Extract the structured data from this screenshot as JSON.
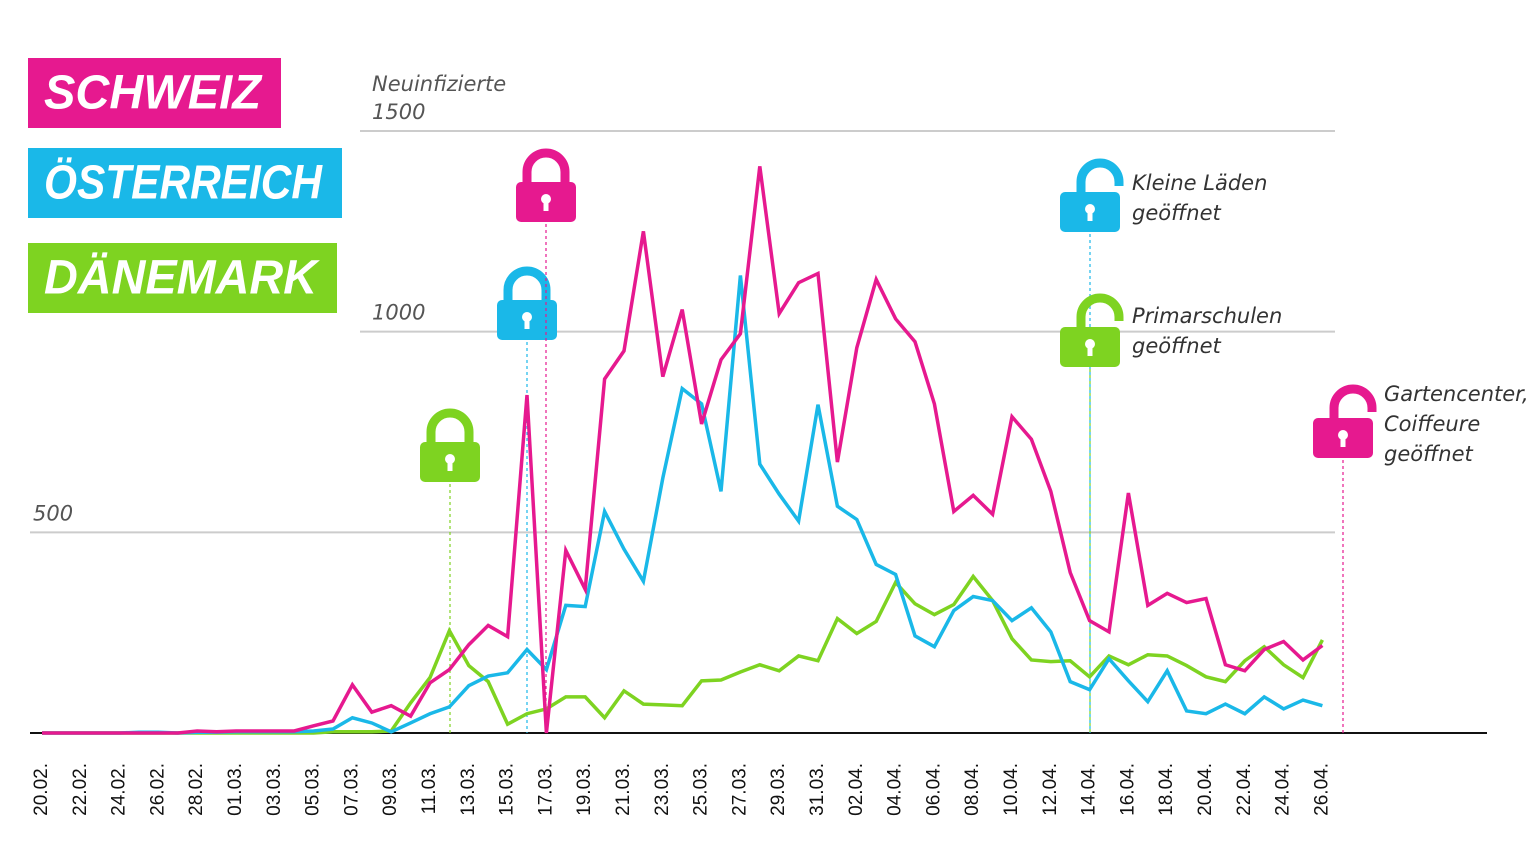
{
  "chart_data": {
    "type": "line",
    "y_label": "Neuinfizierte",
    "categories": [
      "20.02.",
      null,
      "22.02.",
      null,
      "24.02.",
      null,
      "26.02.",
      null,
      "28.02.",
      null,
      "01.03.",
      null,
      "03.03.",
      null,
      "05.03.",
      null,
      "07.03.",
      null,
      "09.03.",
      null,
      "11.03.",
      null,
      "13.03.",
      null,
      "15.03.",
      null,
      "17.03.",
      null,
      "19.03.",
      null,
      "21.03.",
      null,
      "23.03.",
      null,
      "25.03.",
      null,
      "27.03.",
      null,
      "29.03.",
      null,
      "31.03.",
      null,
      "02.04.",
      null,
      "04.04.",
      null,
      "06.04.",
      null,
      "08.04.",
      null,
      "10.04.",
      null,
      "12.04.",
      null,
      "14.04.",
      null,
      "16.04.",
      null,
      "18.04.",
      null,
      "20.04.",
      null,
      "22.04.",
      null,
      "24.04.",
      null,
      "26.04."
    ],
    "series": [
      {
        "name": "SCHWEIZ",
        "color": "#e6198f",
        "values": [
          0,
          0,
          0,
          0,
          0,
          0,
          0,
          0,
          5,
          3,
          5,
          5,
          5,
          5,
          18,
          30,
          120,
          52,
          68,
          42,
          125,
          158,
          220,
          268,
          240,
          842,
          0,
          455,
          358,
          882,
          952,
          1250,
          888,
          1055,
          770,
          930,
          995,
          1412,
          1045,
          1122,
          1145,
          675,
          960,
          1130,
          1032,
          975,
          820,
          552,
          592,
          545,
          788,
          732,
          602,
          400,
          280,
          252,
          598,
          318,
          348,
          325,
          335,
          170,
          155,
          208,
          228,
          182,
          218
        ]
      },
      {
        "name": "ÖSTERREICH",
        "color": "#1ab8e8",
        "values": [
          0,
          0,
          0,
          0,
          0,
          2,
          2,
          0,
          2,
          2,
          3,
          3,
          3,
          3,
          5,
          10,
          38,
          25,
          3,
          25,
          48,
          65,
          118,
          142,
          150,
          208,
          158,
          318,
          315,
          552,
          458,
          378,
          635,
          858,
          820,
          602,
          1140,
          670,
          595,
          528,
          818,
          565,
          532,
          420,
          395,
          242,
          215,
          305,
          340,
          330,
          280,
          312,
          252,
          128,
          108,
          185,
          130,
          78,
          155,
          55,
          48,
          72,
          48,
          90,
          60,
          82,
          68
        ]
      },
      {
        "name": "DÄNEMARK",
        "color": "#7ed321",
        "values": [
          0,
          0,
          0,
          0,
          0,
          0,
          0,
          0,
          0,
          0,
          0,
          0,
          0,
          0,
          0,
          3,
          3,
          3,
          5,
          75,
          138,
          255,
          168,
          128,
          22,
          48,
          60,
          90,
          90,
          38,
          105,
          72,
          70,
          68,
          130,
          132,
          152,
          170,
          155,
          192,
          180,
          285,
          248,
          278,
          375,
          322,
          295,
          320,
          390,
          330,
          235,
          182,
          178,
          180,
          140,
          192,
          170,
          195,
          192,
          168,
          140,
          128,
          180,
          215,
          170,
          138,
          232
        ]
      }
    ],
    "ylim": [
      0,
      1500
    ],
    "yticks": [
      500,
      1000,
      1500
    ],
    "grid": true,
    "annotations": [
      [
        "Kleine Läden",
        "geöffnet"
      ],
      [
        "Primarschulen",
        "geöffnet"
      ],
      [
        "Gartencenter,",
        "Coiffeure",
        "geöffnet"
      ]
    ]
  }
}
